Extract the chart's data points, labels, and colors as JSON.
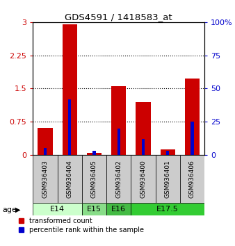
{
  "title": "GDS4591 / 1418583_at",
  "samples": [
    "GSM936403",
    "GSM936404",
    "GSM936405",
    "GSM936402",
    "GSM936400",
    "GSM936401",
    "GSM936406"
  ],
  "transformed_count": [
    0.62,
    2.95,
    0.05,
    1.55,
    1.2,
    0.12,
    1.72
  ],
  "percentile_rank": [
    5,
    42,
    3,
    20,
    12,
    3,
    25
  ],
  "ylim_left": [
    0,
    3
  ],
  "ylim_right": [
    0,
    100
  ],
  "yticks_left": [
    0,
    0.75,
    1.5,
    2.25,
    3
  ],
  "yticks_right": [
    0,
    25,
    50,
    75,
    100
  ],
  "bar_color": "#cc0000",
  "percentile_color": "#0000cc",
  "age_groups": [
    {
      "label": "E14",
      "samples": [
        0,
        1
      ],
      "color": "#ccffcc"
    },
    {
      "label": "E15",
      "samples": [
        2
      ],
      "color": "#88dd88"
    },
    {
      "label": "E16",
      "samples": [
        3
      ],
      "color": "#44bb44"
    },
    {
      "label": "E17.5",
      "samples": [
        4,
        5,
        6
      ],
      "color": "#33cc33"
    }
  ],
  "sample_box_color": "#cccccc",
  "legend_red_label": "transformed count",
  "legend_blue_label": "percentile rank within the sample",
  "age_label": "age",
  "background_color": "#ffffff"
}
